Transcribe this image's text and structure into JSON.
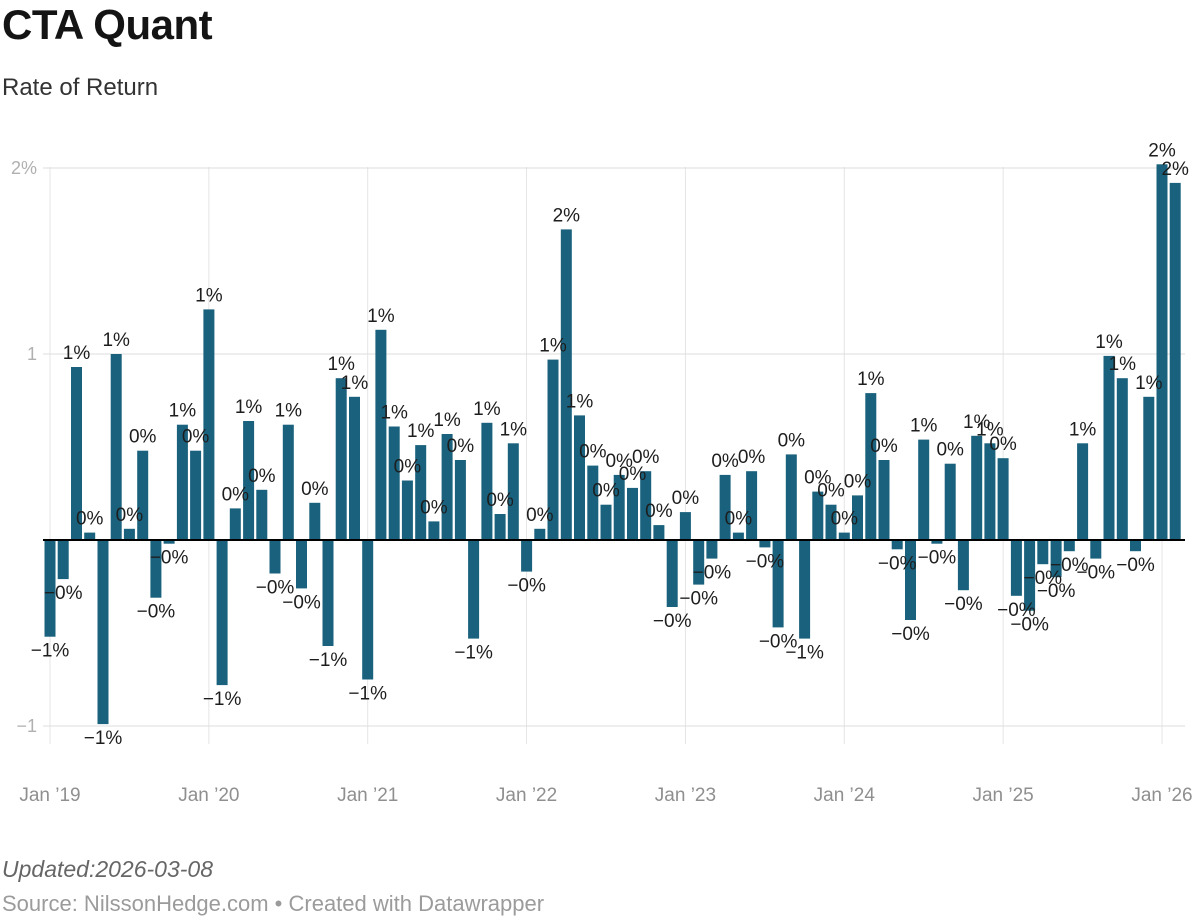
{
  "header": {
    "title": "CTA Quant",
    "subtitle": "Rate of Return"
  },
  "footer": {
    "updated": "Updated:2026-03-08",
    "source": "Source: NilssonHedge.com • Created with Datawrapper"
  },
  "chart_data": {
    "type": "bar",
    "title": "CTA Quant",
    "subtitle": "Rate of Return",
    "unit": "%",
    "ylim": [
      -1.25,
      2.15
    ],
    "grid": true,
    "legend": "none",
    "bar_color": "#19617c",
    "colors": {
      "grid_h": "#dcdcdc",
      "grid_v": "#e5e5e5",
      "baseline": "#000000",
      "axis_text_x": "#8f8f8f",
      "axis_text_y": "#b0b0b0",
      "value_label": "#1d1d1d"
    },
    "y_axis_ticks": [
      {
        "value": 2,
        "label": "2%"
      },
      {
        "value": 1,
        "label": "1"
      },
      {
        "value": -1,
        "label": "−1"
      }
    ],
    "x_axis_ticks": [
      "Jan ’19",
      "Jan ’20",
      "Jan ’21",
      "Jan ’22",
      "Jan ’23",
      "Jan ’24",
      "Jan ’25",
      "Jan ’26"
    ],
    "points": [
      {
        "d": "2019-01",
        "v": -0.52,
        "l": "−1%"
      },
      {
        "d": "2019-02",
        "v": -0.21,
        "l": "−0%"
      },
      {
        "d": "2019-03",
        "v": 0.93,
        "l": "1%"
      },
      {
        "d": "2019-04",
        "v": 0.04,
        "l": "0%"
      },
      {
        "d": "2019-05",
        "v": -0.99,
        "l": "−1%"
      },
      {
        "d": "2019-06",
        "v": 1.0,
        "l": "1%"
      },
      {
        "d": "2019-07",
        "v": 0.06,
        "l": "0%"
      },
      {
        "d": "2019-08",
        "v": 0.48,
        "l": "0%"
      },
      {
        "d": "2019-09",
        "v": -0.31,
        "l": "−0%"
      },
      {
        "d": "2019-10",
        "v": -0.02,
        "l": "−0%"
      },
      {
        "d": "2019-11",
        "v": 0.62,
        "l": "1%"
      },
      {
        "d": "2019-12",
        "v": 0.48,
        "l": "0%"
      },
      {
        "d": "2020-01",
        "v": 1.24,
        "l": "1%"
      },
      {
        "d": "2020-02",
        "v": -0.78,
        "l": "−1%"
      },
      {
        "d": "2020-03",
        "v": 0.17,
        "l": "0%"
      },
      {
        "d": "2020-04",
        "v": 0.64,
        "l": "1%"
      },
      {
        "d": "2020-05",
        "v": 0.27,
        "l": "0%"
      },
      {
        "d": "2020-06",
        "v": -0.18,
        "l": "−0%"
      },
      {
        "d": "2020-07",
        "v": 0.62,
        "l": "1%"
      },
      {
        "d": "2020-08",
        "v": -0.26,
        "l": "−0%"
      },
      {
        "d": "2020-09",
        "v": 0.2,
        "l": "0%"
      },
      {
        "d": "2020-10",
        "v": -0.57,
        "l": "−1%"
      },
      {
        "d": "2020-11",
        "v": 0.87,
        "l": "1%"
      },
      {
        "d": "2020-12",
        "v": 0.77,
        "l": "1%"
      },
      {
        "d": "2021-01",
        "v": -0.75,
        "l": "−1%"
      },
      {
        "d": "2021-02",
        "v": 1.13,
        "l": "1%"
      },
      {
        "d": "2021-03",
        "v": 0.61,
        "l": "1%"
      },
      {
        "d": "2021-04",
        "v": 0.32,
        "l": "0%"
      },
      {
        "d": "2021-05",
        "v": 0.51,
        "l": "1%"
      },
      {
        "d": "2021-06",
        "v": 0.1,
        "l": "0%"
      },
      {
        "d": "2021-07",
        "v": 0.57,
        "l": "1%"
      },
      {
        "d": "2021-08",
        "v": 0.43,
        "l": "0%"
      },
      {
        "d": "2021-09",
        "v": -0.53,
        "l": "−1%"
      },
      {
        "d": "2021-10",
        "v": 0.63,
        "l": "1%"
      },
      {
        "d": "2021-11",
        "v": 0.14,
        "l": "0%"
      },
      {
        "d": "2021-12",
        "v": 0.52,
        "l": "1%"
      },
      {
        "d": "2022-01",
        "v": -0.17,
        "l": "−0%"
      },
      {
        "d": "2022-02",
        "v": 0.06,
        "l": "0%"
      },
      {
        "d": "2022-03",
        "v": 0.97,
        "l": "1%"
      },
      {
        "d": "2022-04",
        "v": 1.67,
        "l": "2%"
      },
      {
        "d": "2022-05",
        "v": 0.67,
        "l": "1%"
      },
      {
        "d": "2022-06",
        "v": 0.4,
        "l": "0%"
      },
      {
        "d": "2022-07",
        "v": 0.19,
        "l": "0%"
      },
      {
        "d": "2022-08",
        "v": 0.35,
        "l": "0%"
      },
      {
        "d": "2022-09",
        "v": 0.28,
        "l": "0%"
      },
      {
        "d": "2022-10",
        "v": 0.37,
        "l": "0%"
      },
      {
        "d": "2022-11",
        "v": 0.08,
        "l": "0%"
      },
      {
        "d": "2022-12",
        "v": -0.36,
        "l": "−0%"
      },
      {
        "d": "2023-01",
        "v": 0.15,
        "l": "0%"
      },
      {
        "d": "2023-02",
        "v": -0.24,
        "l": "−0%"
      },
      {
        "d": "2023-03",
        "v": -0.1,
        "l": "−0%"
      },
      {
        "d": "2023-04",
        "v": 0.35,
        "l": "0%"
      },
      {
        "d": "2023-05",
        "v": 0.04,
        "l": "0%"
      },
      {
        "d": "2023-06",
        "v": 0.37,
        "l": "0%"
      },
      {
        "d": "2023-07",
        "v": -0.04,
        "l": "−0%"
      },
      {
        "d": "2023-08",
        "v": -0.47,
        "l": "−0%"
      },
      {
        "d": "2023-09",
        "v": 0.46,
        "l": "0%"
      },
      {
        "d": "2023-10",
        "v": -0.53,
        "l": "−1%"
      },
      {
        "d": "2023-11",
        "v": 0.26,
        "l": "0%"
      },
      {
        "d": "2023-12",
        "v": 0.19,
        "l": "0%"
      },
      {
        "d": "2024-01",
        "v": 0.04,
        "l": "0%"
      },
      {
        "d": "2024-02",
        "v": 0.24,
        "l": "0%"
      },
      {
        "d": "2024-03",
        "v": 0.79,
        "l": "1%"
      },
      {
        "d": "2024-04",
        "v": 0.43,
        "l": "0%"
      },
      {
        "d": "2024-05",
        "v": -0.05,
        "l": "−0%"
      },
      {
        "d": "2024-06",
        "v": -0.43,
        "l": "−0%"
      },
      {
        "d": "2024-07",
        "v": 0.54,
        "l": "1%"
      },
      {
        "d": "2024-08",
        "v": -0.02,
        "l": "−0%"
      },
      {
        "d": "2024-09",
        "v": 0.41,
        "l": "0%"
      },
      {
        "d": "2024-10",
        "v": -0.27,
        "l": "−0%"
      },
      {
        "d": "2024-11",
        "v": 0.56,
        "l": "1%"
      },
      {
        "d": "2024-12",
        "v": 0.52,
        "l": "1%"
      },
      {
        "d": "2025-01",
        "v": 0.44,
        "l": "0%"
      },
      {
        "d": "2025-02",
        "v": -0.3,
        "l": "−0%"
      },
      {
        "d": "2025-03",
        "v": -0.38,
        "l": "−0%"
      },
      {
        "d": "2025-04",
        "v": -0.13,
        "l": "−0%"
      },
      {
        "d": "2025-05",
        "v": -0.2,
        "l": "−0%"
      },
      {
        "d": "2025-06",
        "v": -0.06,
        "l": "−0%"
      },
      {
        "d": "2025-07",
        "v": 0.52,
        "l": "1%"
      },
      {
        "d": "2025-08",
        "v": -0.1,
        "l": "−0%"
      },
      {
        "d": "2025-09",
        "v": 0.99,
        "l": "1%"
      },
      {
        "d": "2025-10",
        "v": 0.87,
        "l": "1%"
      },
      {
        "d": "2025-11",
        "v": -0.06,
        "l": "−0%"
      },
      {
        "d": "2025-12",
        "v": 0.77,
        "l": "1%"
      },
      {
        "d": "2026-01",
        "v": 2.02,
        "l": "2%"
      },
      {
        "d": "2026-02",
        "v": 1.92,
        "l": "2%"
      }
    ]
  }
}
